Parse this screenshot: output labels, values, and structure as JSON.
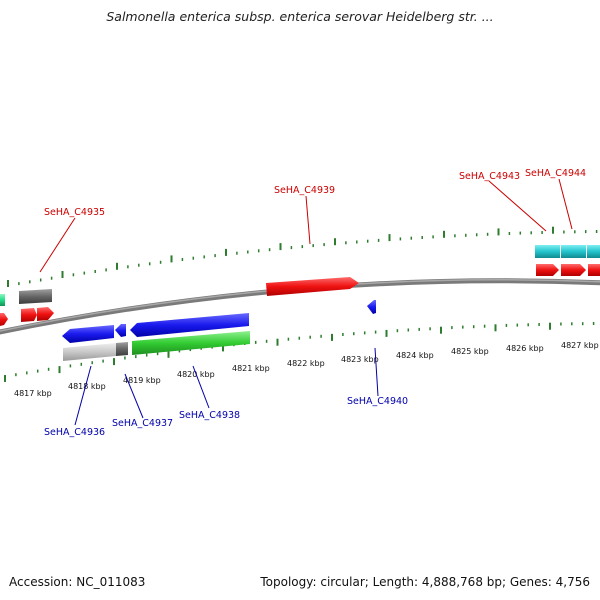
{
  "title": "Salmonella enterica subsp. enterica serovar Heidelberg str. ...",
  "footer": {
    "accession": "Accession: NC_011083",
    "stats": "Topology: circular; Length: 4,888,768 bp; Genes: 4,756"
  },
  "colors": {
    "forward_label": "#cc0000",
    "reverse_label": "#0000aa",
    "backbone": "#808080",
    "ticks": "#2e7d2e"
  },
  "ruler": {
    "unit": "kbp",
    "ticks": [
      "4817 kbp",
      "4818 kbp",
      "4819 kbp",
      "4820 kbp",
      "4821 kbp",
      "4822 kbp",
      "4823 kbp",
      "4824 kbp",
      "4825 kbp",
      "4826 kbp",
      "4827 kbp"
    ]
  },
  "gene_labels": [
    {
      "id": "SeHA_C4935",
      "strand": "forward"
    },
    {
      "id": "SeHA_C4939",
      "strand": "forward"
    },
    {
      "id": "SeHA_C4943",
      "strand": "forward"
    },
    {
      "id": "SeHA_C4944",
      "strand": "forward"
    },
    {
      "id": "SeHA_C4936",
      "strand": "reverse"
    },
    {
      "id": "SeHA_C4937",
      "strand": "reverse"
    },
    {
      "id": "SeHA_C4938",
      "strand": "reverse"
    },
    {
      "id": "SeHA_C4940",
      "strand": "reverse"
    }
  ],
  "legend_colors": {
    "forward_cds": "#ee1111",
    "reverse_cds": "#1a1aee",
    "forward_feature_a": "#22c4cc",
    "forward_feature_b": "#666666",
    "reverse_feature_a": "#33cc33",
    "reverse_feature_b": "#c8c8c8",
    "reverse_feature_c": "#666666",
    "edge_feature": "#22dd88"
  }
}
